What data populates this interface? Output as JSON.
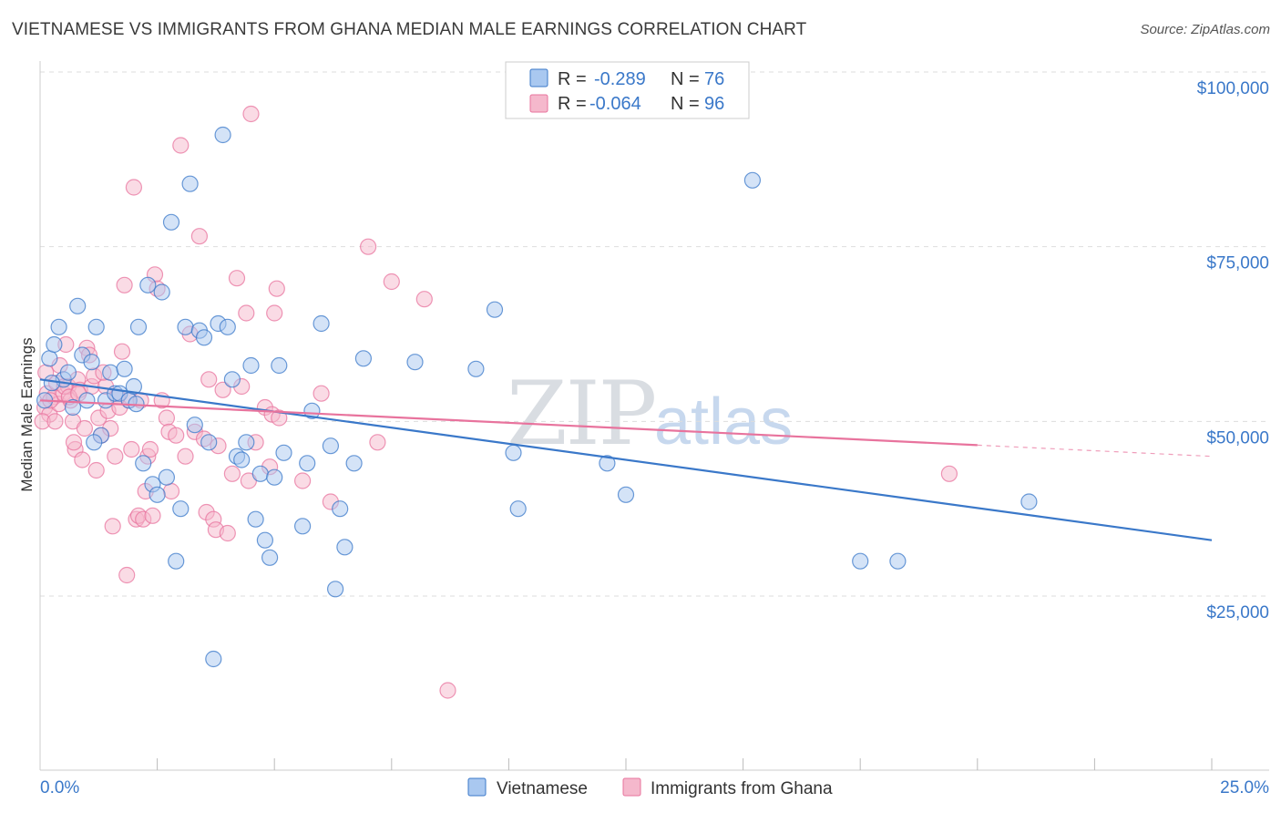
{
  "title": "VIETNAMESE VS IMMIGRANTS FROM GHANA MEDIAN MALE EARNINGS CORRELATION CHART",
  "source": "Source: ZipAtlas.com",
  "watermark": {
    "zip": "ZIP",
    "atlas": "atlas"
  },
  "colors": {
    "blue": "#3a78c9",
    "blue_fill": "#a9c8f0",
    "pink": "#e8739d",
    "pink_fill": "#f5b8cc",
    "grid": "#dddddd"
  },
  "legend": {
    "rows": [
      {
        "r_label": "R =",
        "r_value": "-0.289",
        "n_label": "N =",
        "n_value": "76"
      },
      {
        "r_label": "R =",
        "r_value": "-0.064",
        "n_label": "N =",
        "n_value": "96"
      }
    ]
  },
  "chart_data": {
    "type": "scatter",
    "title": "VIETNAMESE VS IMMIGRANTS FROM GHANA MEDIAN MALE EARNINGS CORRELATION CHART",
    "xlabel": "",
    "ylabel": "Median Male Earnings",
    "xlim": [
      0,
      25
    ],
    "ylim": [
      2500,
      102500
    ],
    "y_ticks": [
      25000,
      50000,
      75000,
      100000
    ],
    "y_tick_labels": [
      "$25,000",
      "$50,000",
      "$75,000",
      "$100,000"
    ],
    "x_tick_labels": [
      "0.0%",
      "25.0%"
    ],
    "grid": true,
    "series": [
      {
        "name": "Vietnamese",
        "r": -0.289,
        "n": 76,
        "trend": {
          "x0": 0,
          "y0": 56000,
          "x1": 25,
          "y1": 33000,
          "dashed_from": null
        },
        "points": [
          [
            0.2,
            59000
          ],
          [
            0.3,
            61000
          ],
          [
            0.4,
            63500
          ],
          [
            0.5,
            56000
          ],
          [
            0.6,
            57000
          ],
          [
            0.7,
            52000
          ],
          [
            0.8,
            66500
          ],
          [
            0.9,
            59500
          ],
          [
            1.0,
            53000
          ],
          [
            1.1,
            58500
          ],
          [
            1.2,
            63500
          ],
          [
            1.3,
            48000
          ],
          [
            1.4,
            53000
          ],
          [
            1.5,
            57000
          ],
          [
            1.6,
            54000
          ],
          [
            1.7,
            54000
          ],
          [
            1.8,
            57500
          ],
          [
            1.9,
            53000
          ],
          [
            2.0,
            55000
          ],
          [
            2.1,
            63500
          ],
          [
            2.2,
            44000
          ],
          [
            2.3,
            69500
          ],
          [
            2.4,
            41000
          ],
          [
            2.5,
            39500
          ],
          [
            2.6,
            68500
          ],
          [
            2.7,
            42000
          ],
          [
            2.8,
            78500
          ],
          [
            2.9,
            30000
          ],
          [
            3.0,
            37500
          ],
          [
            3.1,
            63500
          ],
          [
            3.2,
            84000
          ],
          [
            3.3,
            49500
          ],
          [
            3.4,
            63000
          ],
          [
            3.5,
            62000
          ],
          [
            3.6,
            47000
          ],
          [
            3.7,
            16000
          ],
          [
            3.8,
            64000
          ],
          [
            3.9,
            91000
          ],
          [
            4.0,
            63500
          ],
          [
            4.1,
            56000
          ],
          [
            4.2,
            45000
          ],
          [
            4.3,
            44500
          ],
          [
            4.4,
            47000
          ],
          [
            4.5,
            58000
          ],
          [
            4.6,
            36000
          ],
          [
            4.7,
            42500
          ],
          [
            4.8,
            33000
          ],
          [
            4.9,
            30500
          ],
          [
            5.0,
            42000
          ],
          [
            5.1,
            58000
          ],
          [
            5.2,
            45500
          ],
          [
            5.6,
            35000
          ],
          [
            5.7,
            44000
          ],
          [
            5.8,
            51500
          ],
          [
            6.0,
            64000
          ],
          [
            6.2,
            46500
          ],
          [
            6.3,
            26000
          ],
          [
            6.4,
            37500
          ],
          [
            6.5,
            32000
          ],
          [
            6.7,
            44000
          ],
          [
            6.9,
            59000
          ],
          [
            8.0,
            58500
          ],
          [
            9.3,
            57500
          ],
          [
            9.7,
            66000
          ],
          [
            10.1,
            45500
          ],
          [
            10.2,
            37500
          ],
          [
            12.1,
            44000
          ],
          [
            12.5,
            39500
          ],
          [
            15.2,
            84500
          ],
          [
            17.5,
            30000
          ],
          [
            18.3,
            30000
          ],
          [
            21.1,
            38500
          ],
          [
            0.1,
            53000
          ],
          [
            0.25,
            55500
          ],
          [
            1.15,
            47000
          ],
          [
            2.05,
            52500
          ]
        ]
      },
      {
        "name": "Immigrants from Ghana",
        "r": -0.064,
        "n": 96,
        "trend": {
          "x0": 0,
          "y0": 53000,
          "x1": 25,
          "y1": 45000,
          "dashed_from": 20
        },
        "points": [
          [
            0.1,
            52000
          ],
          [
            0.15,
            54000
          ],
          [
            0.2,
            51000
          ],
          [
            0.3,
            53500
          ],
          [
            0.35,
            55500
          ],
          [
            0.4,
            52500
          ],
          [
            0.5,
            54000
          ],
          [
            0.55,
            61000
          ],
          [
            0.6,
            55000
          ],
          [
            0.65,
            53000
          ],
          [
            0.7,
            50000
          ],
          [
            0.75,
            46000
          ],
          [
            0.8,
            56000
          ],
          [
            0.85,
            54500
          ],
          [
            0.9,
            44500
          ],
          [
            0.95,
            49000
          ],
          [
            1.0,
            60500
          ],
          [
            1.05,
            59500
          ],
          [
            1.1,
            55000
          ],
          [
            1.15,
            56500
          ],
          [
            1.2,
            43000
          ],
          [
            1.25,
            50500
          ],
          [
            1.3,
            48000
          ],
          [
            1.4,
            55000
          ],
          [
            1.45,
            51500
          ],
          [
            1.5,
            49000
          ],
          [
            1.55,
            35000
          ],
          [
            1.6,
            45000
          ],
          [
            1.7,
            52000
          ],
          [
            1.75,
            60000
          ],
          [
            1.8,
            69500
          ],
          [
            1.85,
            28000
          ],
          [
            1.9,
            53000
          ],
          [
            1.95,
            46000
          ],
          [
            2.0,
            83500
          ],
          [
            2.05,
            36000
          ],
          [
            2.1,
            36500
          ],
          [
            2.15,
            53000
          ],
          [
            2.2,
            36000
          ],
          [
            2.25,
            40000
          ],
          [
            2.3,
            45000
          ],
          [
            2.4,
            36500
          ],
          [
            2.45,
            71000
          ],
          [
            2.5,
            69000
          ],
          [
            2.6,
            53000
          ],
          [
            2.7,
            50500
          ],
          [
            2.75,
            48500
          ],
          [
            2.8,
            40000
          ],
          [
            2.9,
            48000
          ],
          [
            3.0,
            89500
          ],
          [
            3.1,
            45000
          ],
          [
            3.2,
            62500
          ],
          [
            3.3,
            48500
          ],
          [
            3.4,
            76500
          ],
          [
            3.5,
            47500
          ],
          [
            3.55,
            37000
          ],
          [
            3.6,
            56000
          ],
          [
            3.7,
            36000
          ],
          [
            3.75,
            34500
          ],
          [
            3.8,
            46500
          ],
          [
            3.9,
            54500
          ],
          [
            4.0,
            34000
          ],
          [
            4.1,
            42500
          ],
          [
            4.2,
            70500
          ],
          [
            4.3,
            55000
          ],
          [
            4.4,
            65500
          ],
          [
            4.45,
            41500
          ],
          [
            4.5,
            94000
          ],
          [
            4.6,
            47000
          ],
          [
            4.8,
            52000
          ],
          [
            4.9,
            43500
          ],
          [
            4.95,
            51000
          ],
          [
            5.0,
            65500
          ],
          [
            5.05,
            69000
          ],
          [
            5.1,
            50500
          ],
          [
            5.6,
            41500
          ],
          [
            6.0,
            54000
          ],
          [
            6.2,
            38500
          ],
          [
            7.0,
            75000
          ],
          [
            7.2,
            47000
          ],
          [
            7.5,
            70000
          ],
          [
            8.2,
            67500
          ],
          [
            8.7,
            11500
          ],
          [
            19.4,
            42500
          ],
          [
            0.05,
            50000
          ],
          [
            0.12,
            57000
          ],
          [
            0.22,
            53000
          ],
          [
            0.32,
            50000
          ],
          [
            0.42,
            58000
          ],
          [
            0.52,
            55000
          ],
          [
            0.62,
            53500
          ],
          [
            0.72,
            47000
          ],
          [
            0.82,
            54000
          ],
          [
            1.35,
            57000
          ],
          [
            1.65,
            53500
          ],
          [
            2.35,
            46000
          ]
        ]
      }
    ]
  },
  "bottom_legend": [
    {
      "label": "Vietnamese"
    },
    {
      "label": "Immigrants from Ghana"
    }
  ]
}
